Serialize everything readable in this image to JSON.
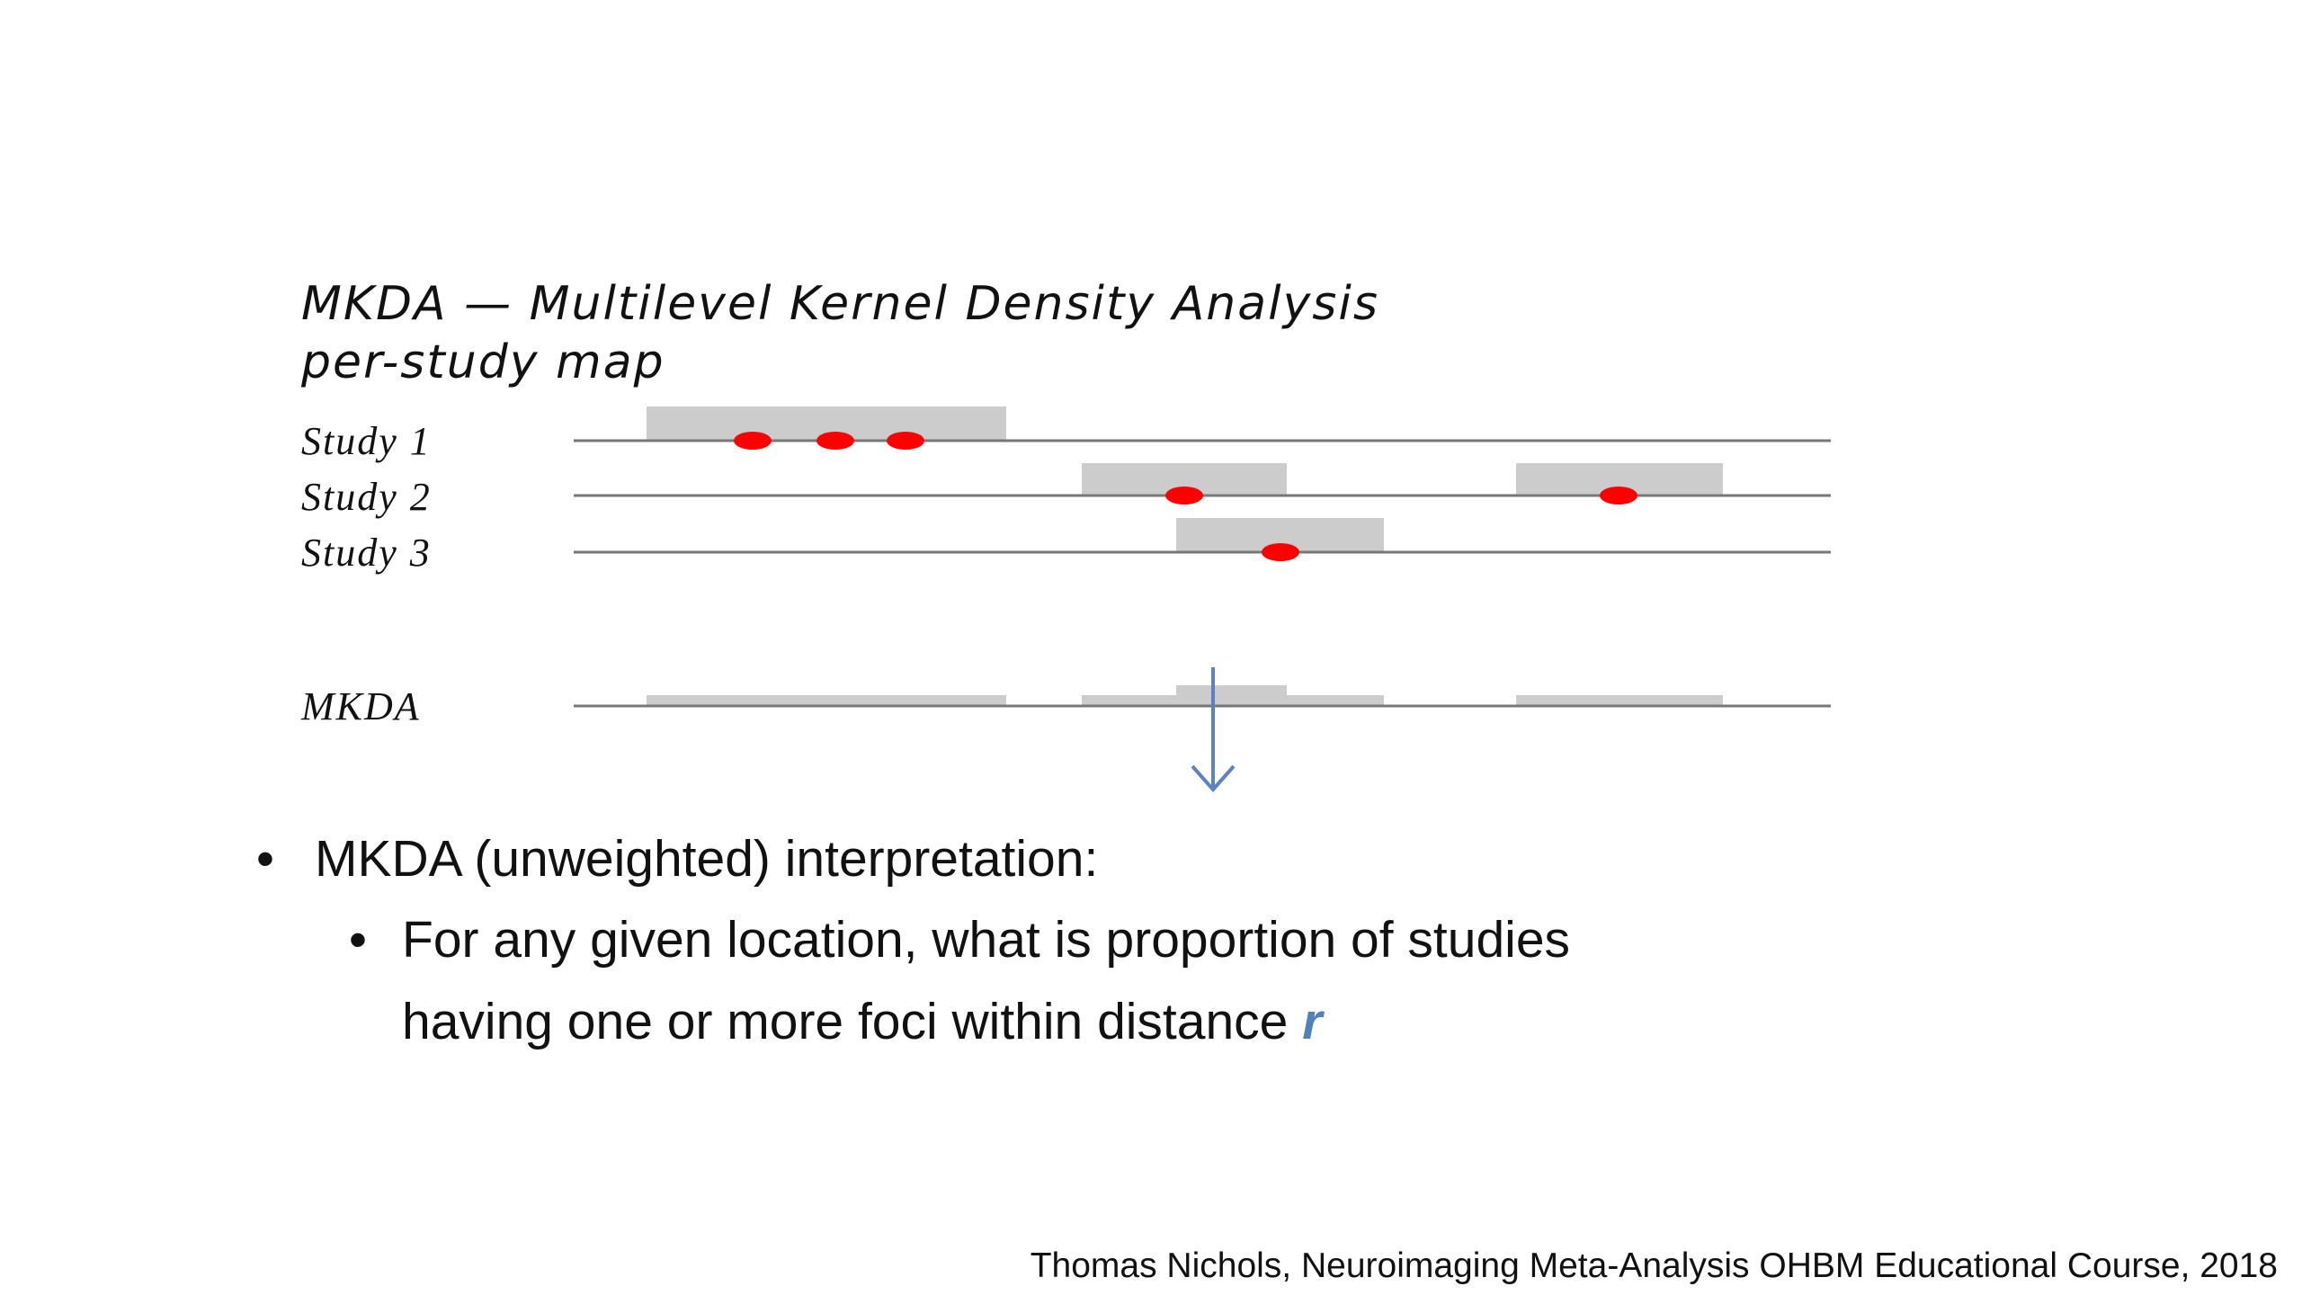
{
  "diagram": {
    "title": "MKDA — Multilevel Kernel Density Analysis",
    "subtitle": "per-study map",
    "rows": [
      {
        "label": "Study 1"
      },
      {
        "label": "Study 2"
      },
      {
        "label": "Study 3"
      }
    ],
    "summary_label": "MKDA"
  },
  "bullets": {
    "main": "MKDA (unweighted) interpretation:",
    "sub_lines": [
      "For any given location, what is proportion of studies",
      "having one or more foci within distance"
    ],
    "sub_emphasis": "r"
  },
  "footer": "Thomas Nichols, Neuroimaging Meta-Analysis OHBM Educational Course, 2018"
}
